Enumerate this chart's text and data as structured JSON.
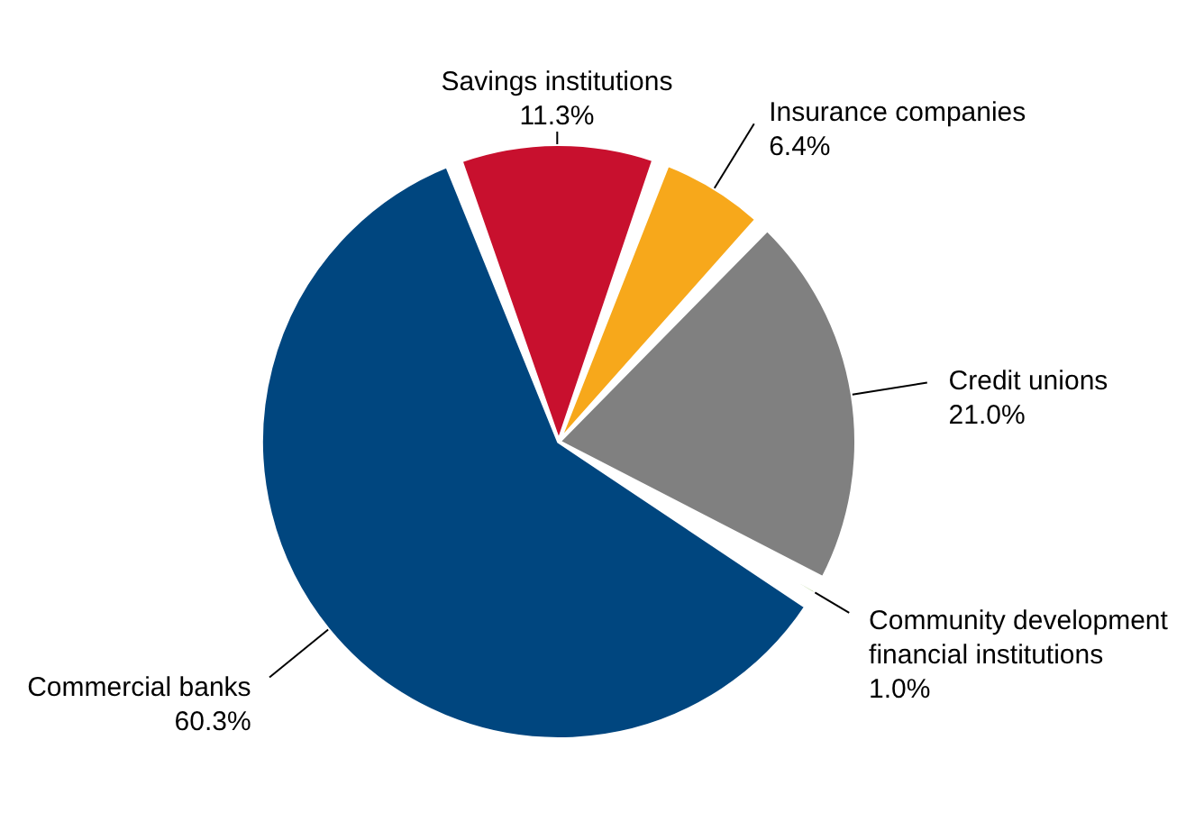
{
  "chart_data": {
    "type": "pie",
    "categories": [
      "Savings institutions",
      "Insurance companies",
      "Credit unions",
      "Community development financial institutions",
      "Commercial banks"
    ],
    "values": [
      11.3,
      6.4,
      21.0,
      1.0,
      60.3
    ],
    "value_labels": [
      "11.3%",
      "6.4%",
      "21.0%",
      "1.0%",
      "60.3%"
    ],
    "colors": [
      "#c8102e",
      "#f7a81b",
      "#808080",
      "#5a9a08",
      "#00467f"
    ]
  }
}
